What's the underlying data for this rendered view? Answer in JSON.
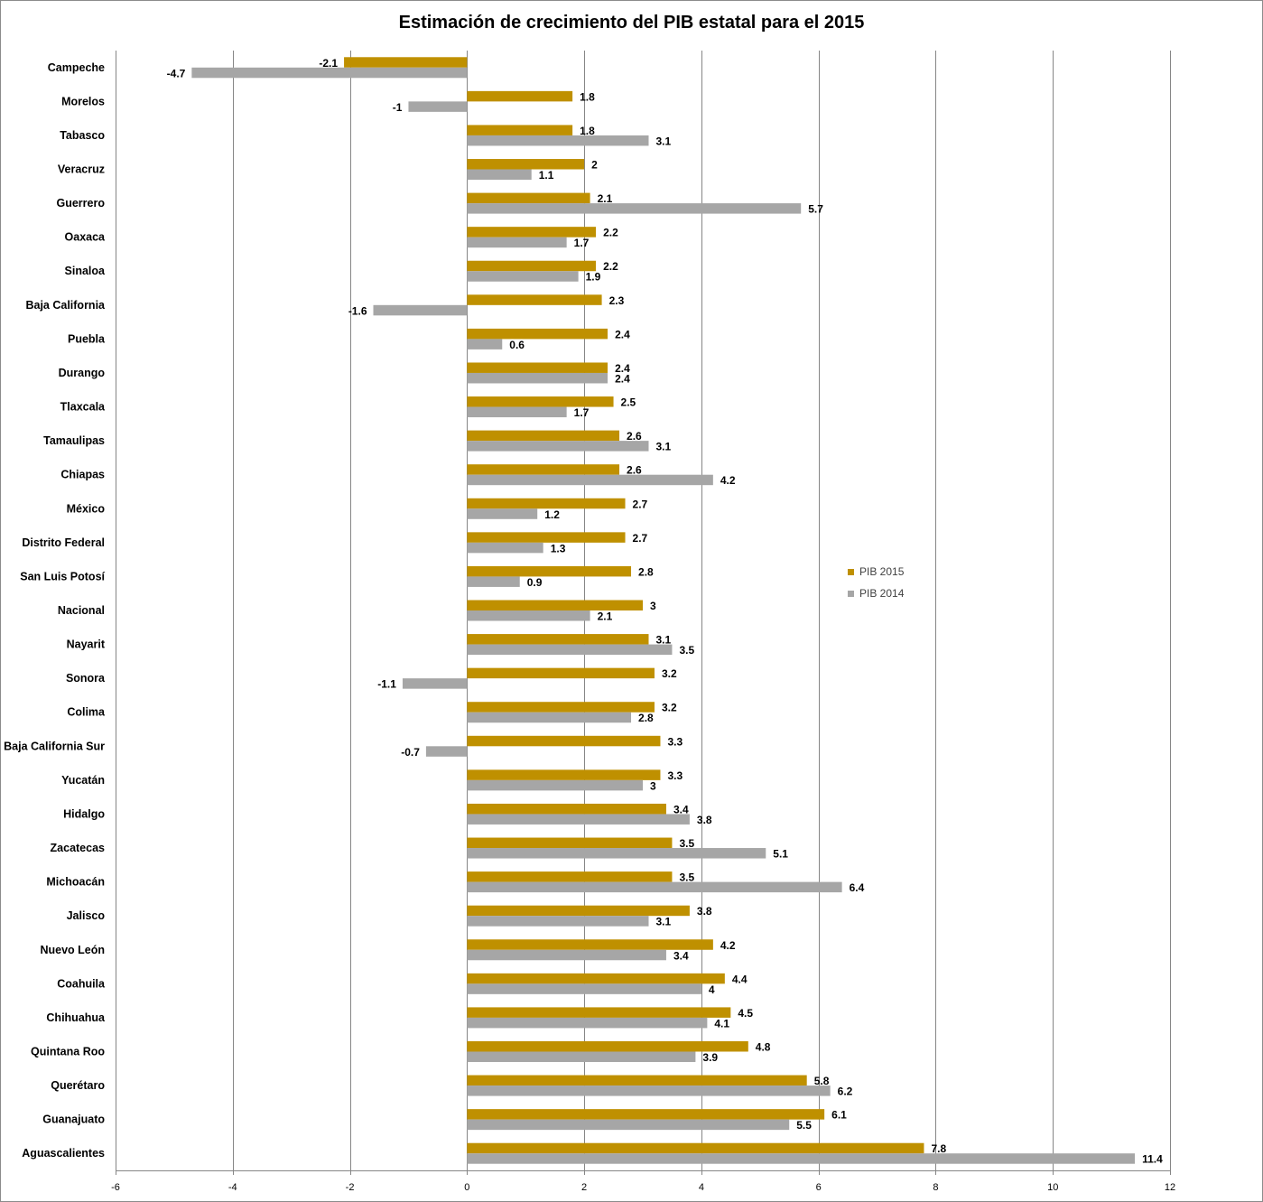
{
  "chart_data": {
    "type": "bar",
    "orientation": "horizontal",
    "title": "Estimación de crecimiento del PIB estatal para el 2015",
    "xlim": [
      -6,
      12
    ],
    "xticks": [
      -6,
      -4,
      -2,
      0,
      2,
      4,
      6,
      8,
      10,
      12
    ],
    "grid": true,
    "legend_position": "right",
    "colors": {
      "PIB 2015": "#bf9000",
      "PIB 2014": "#a6a6a6"
    },
    "categories": [
      "Campeche",
      "Morelos",
      "Tabasco",
      "Veracruz",
      "Guerrero",
      "Oaxaca",
      "Sinaloa",
      "Baja California",
      "Puebla",
      "Durango",
      "Tlaxcala",
      "Tamaulipas",
      "Chiapas",
      "México",
      "Distrito Federal",
      "San Luis Potosí",
      "Nacional",
      "Nayarit",
      "Sonora",
      "Colima",
      "Baja California Sur",
      "Yucatán",
      "Hidalgo",
      "Zacatecas",
      "Michoacán",
      "Jalisco",
      "Nuevo León",
      "Coahuila",
      "Chihuahua",
      "Quintana Roo",
      "Querétaro",
      "Guanajuato",
      "Aguascalientes"
    ],
    "series": [
      {
        "name": "PIB 2015",
        "values": [
          -2.1,
          1.8,
          1.8,
          2,
          2.1,
          2.2,
          2.2,
          2.3,
          2.4,
          2.4,
          2.5,
          2.6,
          2.6,
          2.7,
          2.7,
          2.8,
          3,
          3.1,
          3.2,
          3.2,
          3.3,
          3.3,
          3.4,
          3.5,
          3.5,
          3.8,
          4.2,
          4.4,
          4.5,
          4.8,
          5.8,
          6.1,
          7.8
        ]
      },
      {
        "name": "PIB 2014",
        "values": [
          -4.7,
          -1,
          3.1,
          1.1,
          5.7,
          1.7,
          1.9,
          -1.6,
          0.6,
          2.4,
          1.7,
          3.1,
          4.2,
          1.2,
          1.3,
          0.9,
          2.1,
          3.5,
          -1.1,
          2.8,
          -0.7,
          3,
          3.8,
          5.1,
          6.4,
          3.1,
          3.4,
          4,
          4.1,
          3.9,
          6.2,
          5.5,
          11.4
        ]
      }
    ]
  }
}
